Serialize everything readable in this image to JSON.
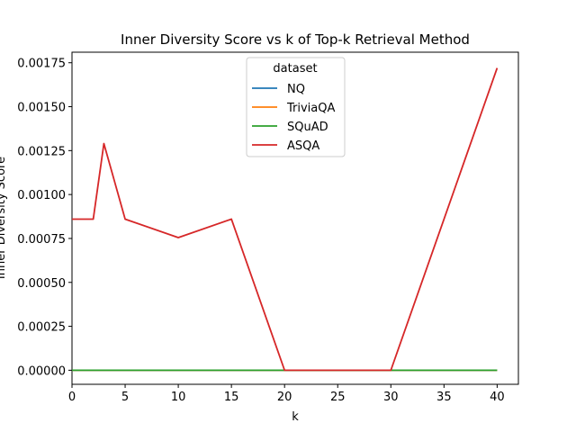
{
  "chart_data": {
    "type": "line",
    "title": "Inner Diversity Score vs k of Top-k Retrieval Method",
    "xlabel": "k",
    "ylabel": "Inner Diversity Score",
    "xlim": [
      0,
      42
    ],
    "ylim": [
      -8e-05,
      0.00181
    ],
    "xticks": [
      "0",
      "5",
      "10",
      "15",
      "20",
      "25",
      "30",
      "35",
      "40"
    ],
    "yticks": [
      "0.00000",
      "0.00025",
      "0.00050",
      "0.00075",
      "0.00100",
      "0.00125",
      "0.00150",
      "0.00175"
    ],
    "grid": false,
    "legend": {
      "title": "dataset",
      "placement": "upper-center"
    },
    "x": [
      0,
      2,
      3,
      5,
      10,
      15,
      20,
      30,
      40
    ],
    "series": [
      {
        "name": "NQ",
        "color": "#1f77b4",
        "values": [
          0,
          0,
          0,
          0,
          0,
          0,
          0,
          0,
          0
        ]
      },
      {
        "name": "TriviaQA",
        "color": "#ff7f0e",
        "values": [
          0,
          0,
          0,
          0,
          0,
          0,
          0,
          0,
          0
        ]
      },
      {
        "name": "SQuAD",
        "color": "#2ca02c",
        "values": [
          0,
          0,
          0,
          0,
          0,
          0,
          0,
          0,
          0
        ]
      },
      {
        "name": "ASQA",
        "color": "#d62728",
        "values": [
          0.00086,
          0.00086,
          0.00129,
          0.00086,
          0.000755,
          0.00086,
          0,
          0,
          0.00172
        ]
      }
    ]
  }
}
